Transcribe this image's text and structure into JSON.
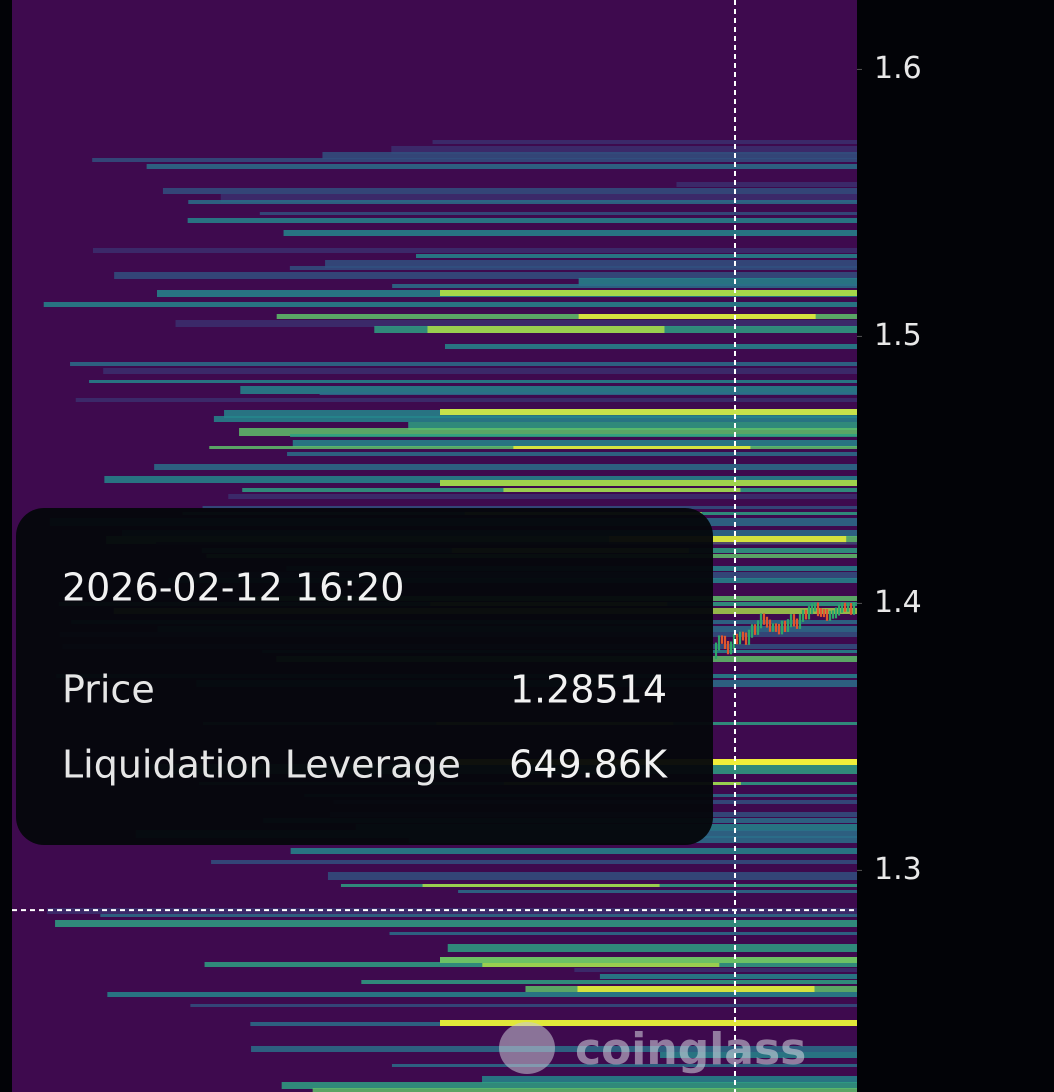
{
  "chart_data": {
    "type": "heatmap",
    "ylim": [
      1.217,
      1.626
    ],
    "yticks": [
      1.3,
      1.4,
      1.5,
      1.6
    ],
    "tooltip": {
      "time": "2026-02-12 16:20",
      "price_label": "Price",
      "price": 1.28514,
      "leverage_label": "Liquidation Leverage",
      "leverage": "649.86K"
    },
    "watermark": "coinglass"
  }
}
